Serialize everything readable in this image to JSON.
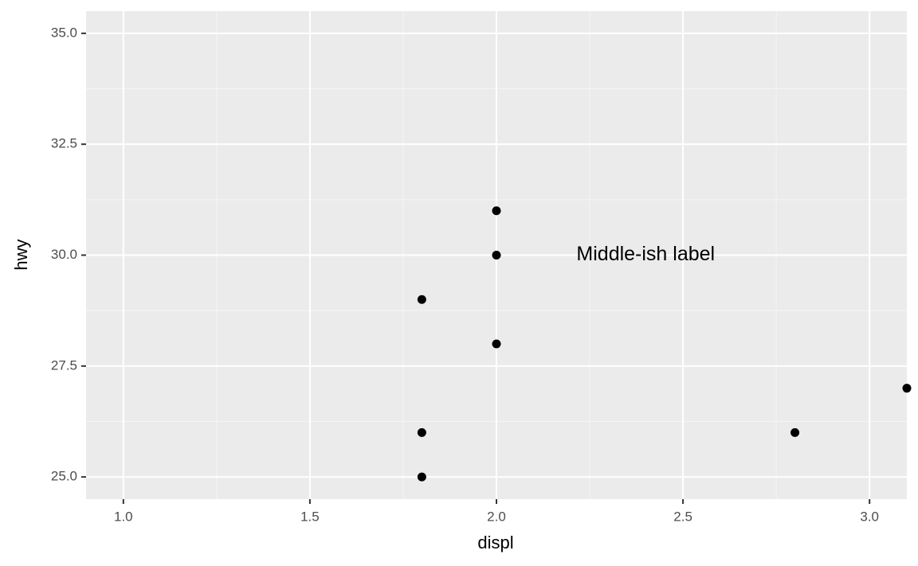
{
  "chart_data": {
    "type": "scatter",
    "x_label": "displ",
    "y_label": "hwy",
    "x": [
      1.8,
      1.8,
      1.8,
      2.0,
      2.0,
      2.0,
      2.8,
      3.1
    ],
    "values": [
      29,
      26,
      25,
      31,
      30,
      28,
      26,
      27
    ],
    "color": "#000000",
    "xlim": [
      0.9,
      3.1
    ],
    "ylim": [
      24.5,
      35.5
    ],
    "xticks": [
      {
        "value": 1,
        "label": "1.0"
      },
      {
        "value": 1.5,
        "label": "1.5"
      },
      {
        "value": 2,
        "label": "2.0"
      },
      {
        "value": 2.5,
        "label": "2.5"
      },
      {
        "value": 3,
        "label": "3.0"
      }
    ],
    "yticks": [
      {
        "value": 25,
        "label": "25.0"
      },
      {
        "value": 27.5,
        "label": "27.5"
      },
      {
        "value": 30,
        "label": "30.0"
      },
      {
        "value": 32.5,
        "label": "32.5"
      },
      {
        "value": 35,
        "label": "35.0"
      }
    ],
    "grid": true,
    "annotations": [
      {
        "text": "Middle-ish label",
        "x": 2.4,
        "y": 30
      }
    ]
  }
}
